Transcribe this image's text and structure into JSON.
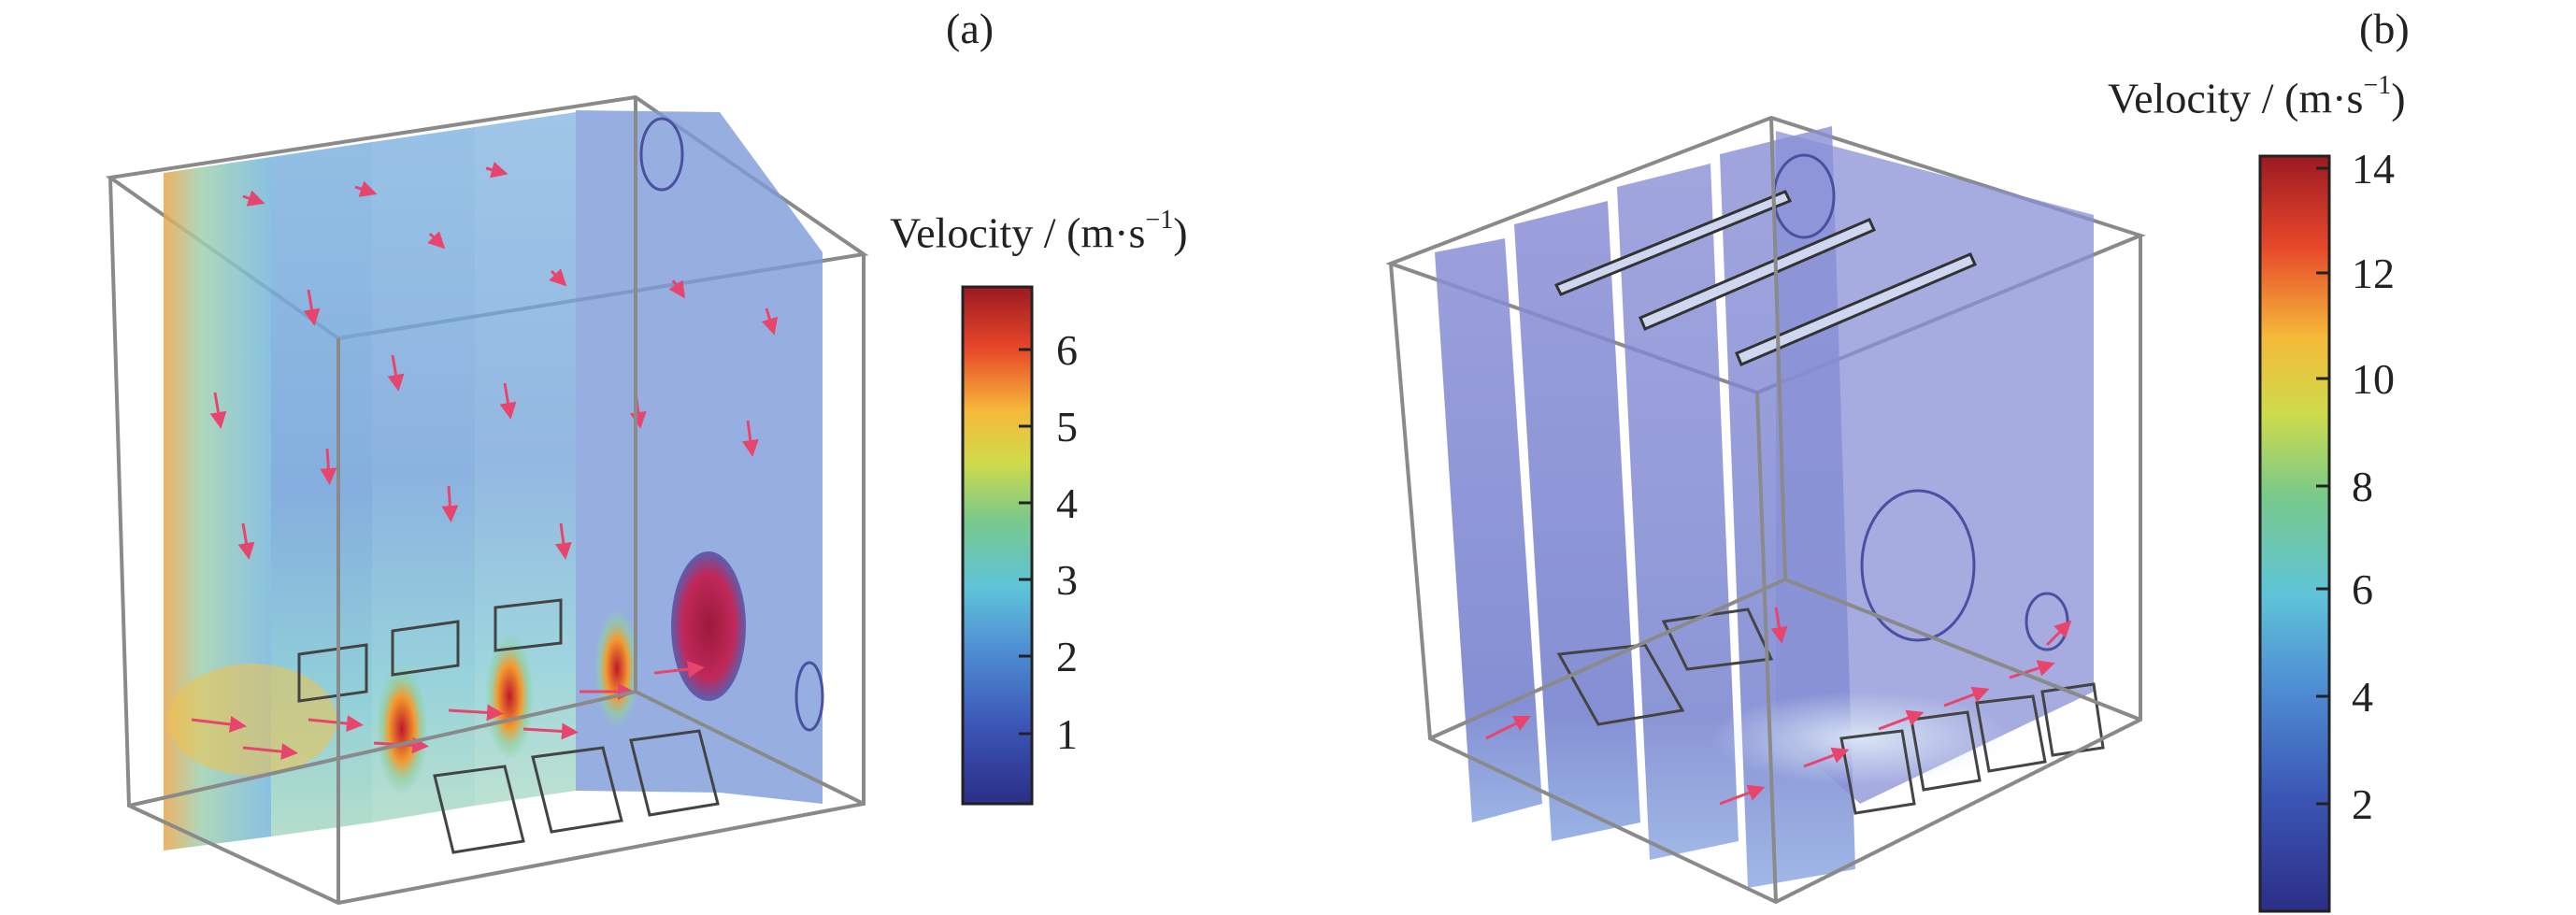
{
  "panels": [
    {
      "label": "(a)",
      "colorbar": {
        "title_prefix": "Velocity / (m·s",
        "title_exp": "−1",
        "title_suffix": ")",
        "ticks": [
          "1",
          "2",
          "3",
          "4",
          "5",
          "6"
        ]
      }
    },
    {
      "label": "(b)",
      "colorbar": {
        "title_prefix": "Velocity / (m·s",
        "title_exp": "−1",
        "title_suffix": ")",
        "ticks": [
          "2",
          "4",
          "6",
          "8",
          "10",
          "12",
          "14"
        ]
      }
    }
  ],
  "colors": {
    "arrow": "#e8456e",
    "frame": "#7a7a7a",
    "outline": "#444444"
  }
}
